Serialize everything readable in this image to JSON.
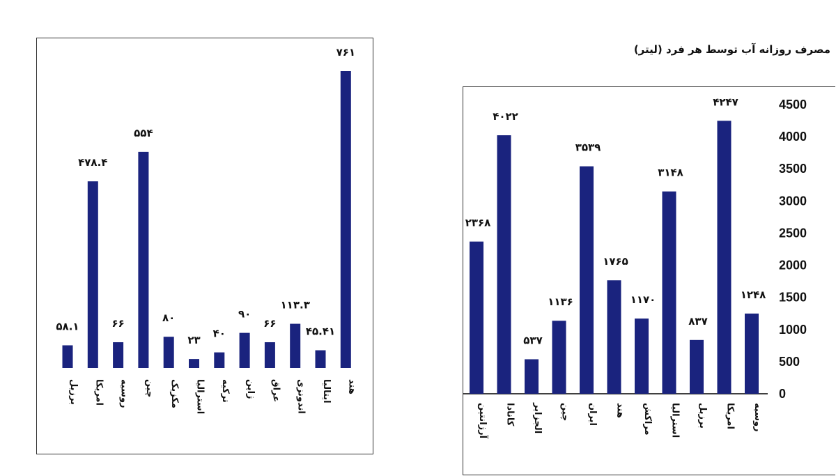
{
  "chart_data": [
    {
      "type": "bar",
      "title": "",
      "categories": [
        "برزیل",
        "امریکا",
        "روسیه",
        "چین",
        "مکزیک",
        "استرالیا",
        "ترکیه",
        "ژاپن",
        "عراق",
        "اندونزی",
        "ایتالیا",
        "هند"
      ],
      "value_labels": [
        "۵۸.۱",
        "۴۷۸.۴",
        "۶۶",
        "۵۵۴",
        "۸۰",
        "۲۳",
        "۴۰",
        "۹۰",
        "۶۶",
        "۱۱۳.۳",
        "۴۵.۴۱",
        "۷۶۱"
      ],
      "values": [
        58.1,
        478.4,
        66,
        554,
        80,
        23,
        40,
        90,
        66,
        113.3,
        45.41,
        761
      ],
      "bar_color": "#1a237e",
      "grid": false,
      "axes_visible": false,
      "ylim": [
        0,
        800
      ]
    },
    {
      "type": "bar",
      "title": "مصرف روزانه آب توسط هر فرد (لیتر)",
      "categories": [
        "آرژانتین",
        "کانادا",
        "الجزایر",
        "چین",
        "ایران",
        "هند",
        "مراکش",
        "استرالیا",
        "برزیل",
        "امریکا",
        "روسیه"
      ],
      "value_labels": [
        "۲۳۶۸",
        "۴۰۲۲",
        "۵۳۷",
        "۱۱۳۶",
        "۳۵۳۹",
        "۱۷۶۵",
        "۱۱۷۰",
        "۳۱۴۸",
        "۸۳۷",
        "۴۲۴۷",
        "۱۲۴۸"
      ],
      "values": [
        2368,
        4022,
        537,
        1136,
        3539,
        1765,
        1170,
        3148,
        837,
        4247,
        1248
      ],
      "bar_color": "#1a237e",
      "grid": false,
      "ylim": [
        0,
        4500
      ],
      "y_ticks": [
        "0",
        "500",
        "1000",
        "1500",
        "2000",
        "2500",
        "3000",
        "3500",
        "4000",
        "4500"
      ],
      "y_axis_position": "right"
    }
  ]
}
